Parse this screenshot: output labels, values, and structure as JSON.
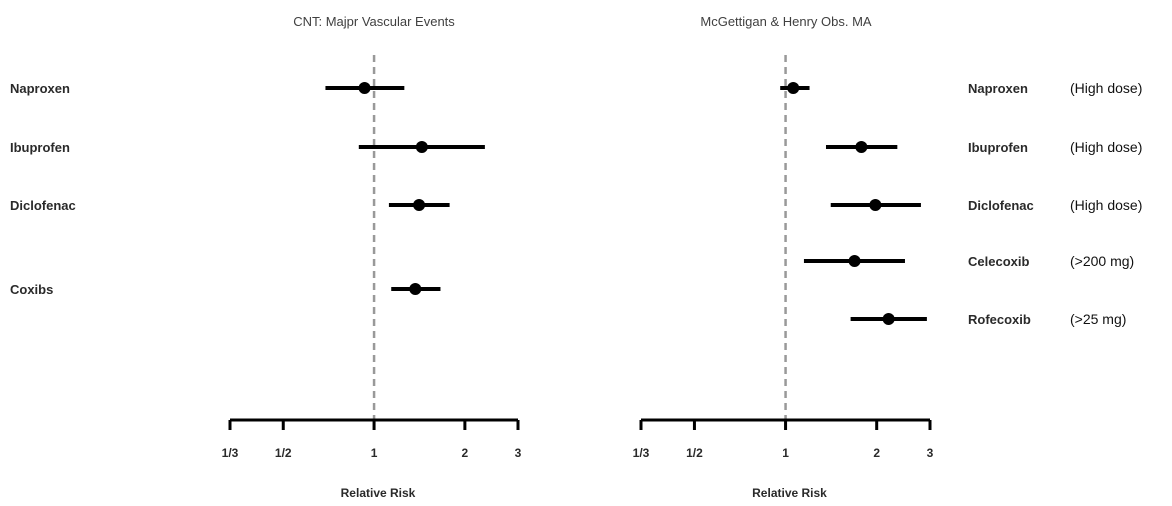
{
  "chart_data": [
    {
      "type": "forest",
      "title": "CNT: Majpr Vascular Events",
      "xlabel": "Relative Risk",
      "xscale": "log",
      "xlim": [
        0.333,
        3
      ],
      "reference_line": 1,
      "ticks": [
        {
          "value": 0.333,
          "label": "1/3"
        },
        {
          "value": 0.5,
          "label": "1/2"
        },
        {
          "value": 1,
          "label": "1"
        },
        {
          "value": 2,
          "label": "2"
        },
        {
          "value": 3,
          "label": "3"
        }
      ],
      "rows": [
        {
          "label": "Naproxen",
          "estimate": 0.93,
          "lower": 0.69,
          "upper": 1.26
        },
        {
          "label": "Ibuprofen",
          "estimate": 1.44,
          "lower": 0.89,
          "upper": 2.33
        },
        {
          "label": "Diclofenac",
          "estimate": 1.41,
          "lower": 1.12,
          "upper": 1.78
        },
        {
          "label": "Coxibs",
          "estimate": 1.37,
          "lower": 1.14,
          "upper": 1.66
        }
      ]
    },
    {
      "type": "forest",
      "title": "McGettigan & Henry Obs. MA",
      "xlabel": "Relative Risk",
      "xscale": "log",
      "xlim": [
        0.333,
        3
      ],
      "reference_line": 1,
      "ticks": [
        {
          "value": 0.333,
          "label": "1/3"
        },
        {
          "value": 0.5,
          "label": "1/2"
        },
        {
          "value": 1,
          "label": "1"
        },
        {
          "value": 2,
          "label": "2"
        },
        {
          "value": 3,
          "label": "3"
        }
      ],
      "rows": [
        {
          "label": "Naproxen",
          "note": "(High dose)",
          "estimate": 1.06,
          "lower": 0.96,
          "upper": 1.2
        },
        {
          "label": "Ibuprofen",
          "note": "(High dose)",
          "estimate": 1.78,
          "lower": 1.36,
          "upper": 2.34
        },
        {
          "label": "Diclofenac",
          "note": "(High dose)",
          "estimate": 1.98,
          "lower": 1.41,
          "upper": 2.8
        },
        {
          "label": "Celecoxib",
          "note": "(>200 mg)",
          "estimate": 1.69,
          "lower": 1.15,
          "upper": 2.48
        },
        {
          "label": "Rofecoxib",
          "note": "(>25 mg)",
          "estimate": 2.19,
          "lower": 1.64,
          "upper": 2.93
        }
      ]
    }
  ]
}
